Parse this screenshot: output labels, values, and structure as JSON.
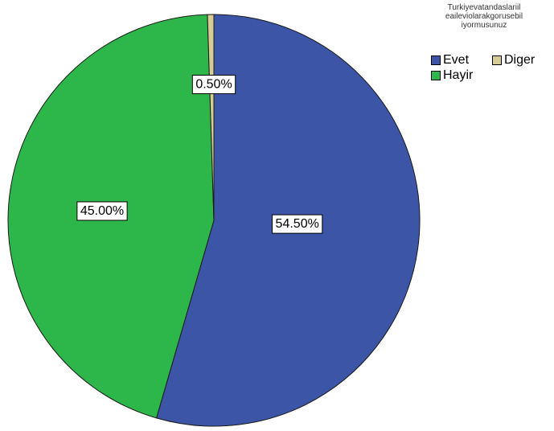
{
  "chart_data": {
    "type": "pie",
    "title": "",
    "legend_title_lines": [
      "Turkiyevatandaslariil",
      "eaileviolarakgorusebil",
      "iyormusunuz"
    ],
    "legend_placement": "top-right",
    "start_angle_deg": 0,
    "direction": "clockwise",
    "slices": [
      {
        "name": "Evet",
        "value": 54.5,
        "label": "54.50%",
        "color": "#3c55a7"
      },
      {
        "name": "Hayir",
        "value": 45.0,
        "label": "45.00%",
        "color": "#2db74a"
      },
      {
        "name": "Diger",
        "value": 0.5,
        "label": "0.50%",
        "color": "#d7cc98"
      }
    ]
  },
  "legend": {
    "items": [
      {
        "name": "Evet",
        "color": "#3c55a7"
      },
      {
        "name": "Diger",
        "color": "#d7cc98"
      },
      {
        "name": "Hayir",
        "color": "#2db74a"
      }
    ]
  }
}
